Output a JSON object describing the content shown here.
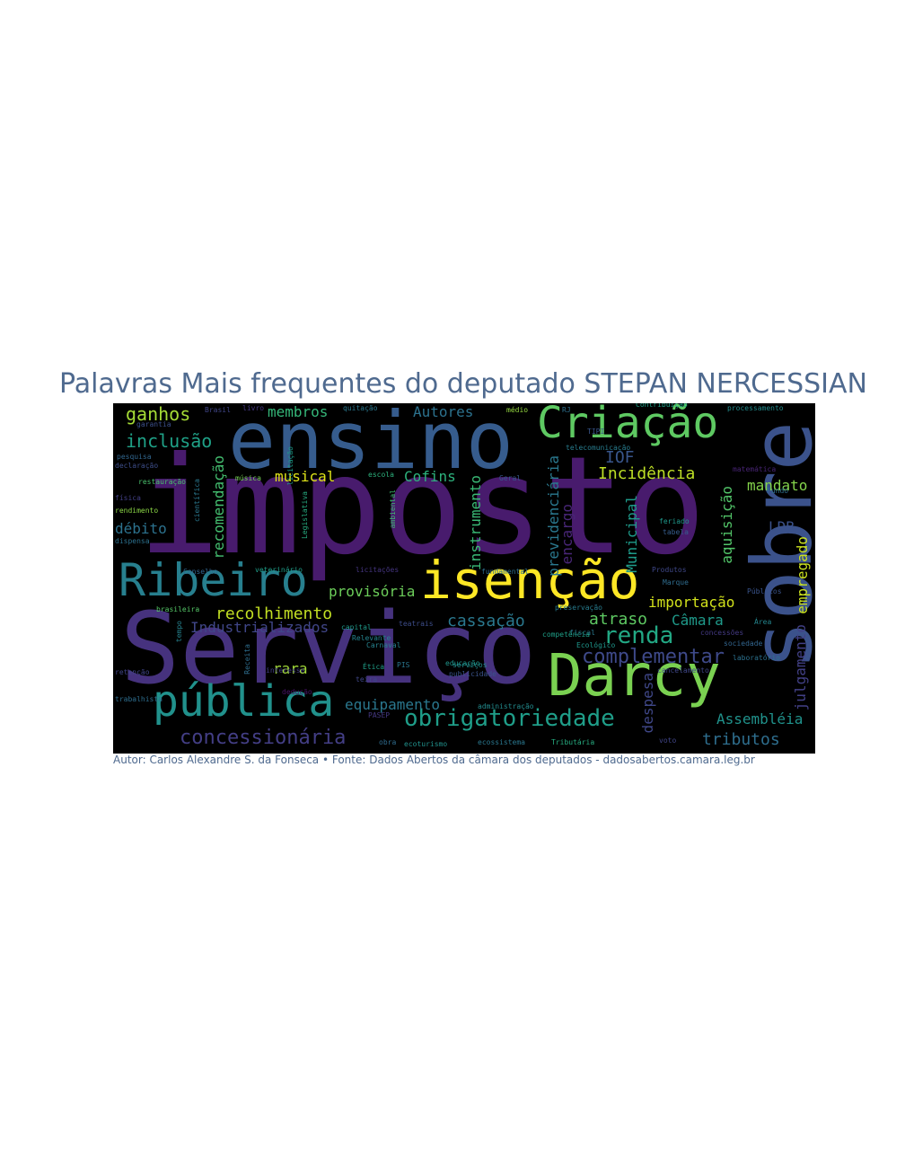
{
  "title": "Palavras Mais frequentes do deputado STEPAN NERCESSIAN",
  "caption": "Autor: Carlos Alexandre S. da Fonseca • Fonte: Dados Abertos da câmara dos deputados - dadosabertos.camara.leg.br",
  "wordcloud": {
    "background": "#000000",
    "words": [
      {
        "text": "imposto",
        "color": "#481b6d"
      },
      {
        "text": "Serviço",
        "color": "#46327e"
      },
      {
        "text": "ensino",
        "color": "#365c8d"
      },
      {
        "text": "sobre",
        "color": "#3b528b"
      },
      {
        "text": "Darcy",
        "color": "#7ad151"
      },
      {
        "text": "isenção",
        "color": "#fde725"
      },
      {
        "text": "Criação",
        "color": "#5ec962"
      },
      {
        "text": "Ribeiro",
        "color": "#277f8e"
      },
      {
        "text": "pública",
        "color": "#21918c"
      },
      {
        "text": "obrigatoriedade",
        "color": "#1f9e89"
      },
      {
        "text": "renda",
        "color": "#22a884"
      },
      {
        "text": "complementar",
        "color": "#3e4989"
      },
      {
        "text": "concessionária",
        "color": "#433e85"
      },
      {
        "text": "previdenciária",
        "color": "#2a788e"
      },
      {
        "text": "Incidência",
        "color": "#bddf26"
      },
      {
        "text": "ganhos",
        "color": "#a5db36"
      },
      {
        "text": "inclusão",
        "color": "#1fa187"
      },
      {
        "text": "membros",
        "color": "#35b779"
      },
      {
        "text": "Autores",
        "color": "#2c728e"
      },
      {
        "text": "recomendação",
        "color": "#44bf70"
      },
      {
        "text": "musical",
        "color": "#dfe318"
      },
      {
        "text": "Cofins",
        "color": "#2db27d"
      },
      {
        "text": "instrumento",
        "color": "#3aba76"
      },
      {
        "text": "IOF",
        "color": "#39568c"
      },
      {
        "text": "débito",
        "color": "#2c728e"
      },
      {
        "text": "recolhimento",
        "color": "#c2df23"
      },
      {
        "text": "provisória",
        "color": "#6ccd5a"
      },
      {
        "text": "Industrializados",
        "color": "#404688"
      },
      {
        "text": "cassação",
        "color": "#2a788e"
      },
      {
        "text": "atraso",
        "color": "#5ec962"
      },
      {
        "text": "Câmara",
        "color": "#1f9a8a"
      },
      {
        "text": "importação",
        "color": "#d2e21b"
      },
      {
        "text": "empregado",
        "color": "#cae11f"
      },
      {
        "text": "mandato",
        "color": "#84d44b"
      },
      {
        "text": "aquisição",
        "color": "#52c569"
      },
      {
        "text": "LDB",
        "color": "#3b528b"
      },
      {
        "text": "Municipal",
        "color": "#1e9b8a"
      },
      {
        "text": "encargo",
        "color": "#482677"
      },
      {
        "text": "julgamento",
        "color": "#424086"
      },
      {
        "text": "rara",
        "color": "#a2da37"
      },
      {
        "text": "equipamento",
        "color": "#2a778e"
      },
      {
        "text": "despesa",
        "color": "#3f4788"
      },
      {
        "text": "Assembléia",
        "color": "#20928c"
      },
      {
        "text": "tributos",
        "color": "#2e6e8e"
      },
      {
        "text": "Brasil",
        "color": "#404688"
      },
      {
        "text": "livro",
        "color": "#453882"
      },
      {
        "text": "quitação",
        "color": "#2a788e"
      },
      {
        "text": "médio",
        "color": "#95d840"
      },
      {
        "text": "RJ",
        "color": "#2d708e"
      },
      {
        "text": "processamento",
        "color": "#228c8d"
      },
      {
        "text": "Contribuição",
        "color": "#1fa187"
      },
      {
        "text": "garantia",
        "color": "#3c508b"
      },
      {
        "text": "pesquisa",
        "color": "#31668e"
      },
      {
        "text": "declaração",
        "color": "#3d4e8a"
      },
      {
        "text": "restauração",
        "color": "#4ac16d"
      },
      {
        "text": "física",
        "color": "#423f85"
      },
      {
        "text": "rendimento",
        "color": "#8bd646"
      },
      {
        "text": "dispensa",
        "color": "#2c718e"
      },
      {
        "text": "música",
        "color": "#75d054"
      },
      {
        "text": "científica",
        "color": "#2a788e"
      },
      {
        "text": "escola",
        "color": "#2db27d"
      },
      {
        "text": "Geral",
        "color": "#38588c"
      },
      {
        "text": "matemática",
        "color": "#482475"
      },
      {
        "text": "Fundo",
        "color": "#2e6f8e"
      },
      {
        "text": "feriado",
        "color": "#1f988b"
      },
      {
        "text": "tabela",
        "color": "#365d8d"
      },
      {
        "text": "Conselho",
        "color": "#32658e"
      },
      {
        "text": "veterinário",
        "color": "#1f9e89"
      },
      {
        "text": "licitações",
        "color": "#453581"
      },
      {
        "text": "fundamental",
        "color": "#2e6e8e"
      },
      {
        "text": "Produtos",
        "color": "#3f4889"
      },
      {
        "text": "Públicos",
        "color": "#3a548c"
      },
      {
        "text": "Marque",
        "color": "#2f6c8e"
      },
      {
        "text": "Área",
        "color": "#24868e"
      },
      {
        "text": "brasileira",
        "color": "#55c667"
      },
      {
        "text": "capital",
        "color": "#1f9a8a"
      },
      {
        "text": "Relevante",
        "color": "#25848e"
      },
      {
        "text": "teatrais",
        "color": "#3d4d8a"
      },
      {
        "text": "fiscal",
        "color": "#2a788e"
      },
      {
        "text": "concessões",
        "color": "#443a83"
      },
      {
        "text": "sociedade",
        "color": "#32658e"
      },
      {
        "text": "tempo",
        "color": "#26828e"
      },
      {
        "text": "Ecológico",
        "color": "#1f968b"
      },
      {
        "text": "competência",
        "color": "#1fa088"
      },
      {
        "text": "preservação",
        "color": "#287c8e"
      },
      {
        "text": "laboratório",
        "color": "#2c718e"
      },
      {
        "text": "retenção",
        "color": "#404588"
      },
      {
        "text": "trabalhista",
        "color": "#2e6e8e"
      },
      {
        "text": "Ética",
        "color": "#1f9f88"
      },
      {
        "text": "educação",
        "color": "#1f958b"
      },
      {
        "text": "publicidade",
        "color": "#3a538b"
      },
      {
        "text": "administração",
        "color": "#228b8d"
      },
      {
        "text": "cancelamento",
        "color": "#3f4788"
      },
      {
        "text": "interesse",
        "color": "#433e85"
      },
      {
        "text": "dedução",
        "color": "#471365"
      },
      {
        "text": "teira",
        "color": "#3f4788"
      },
      {
        "text": "PASEP",
        "color": "#453882"
      },
      {
        "text": "obra",
        "color": "#2f6c8e"
      },
      {
        "text": "ecoturismo",
        "color": "#21918c"
      },
      {
        "text": "ecossistema",
        "color": "#2a778e"
      },
      {
        "text": "Tributária",
        "color": "#27ad81"
      },
      {
        "text": "voto",
        "color": "#404588"
      },
      {
        "text": "licitação",
        "color": "#1e9c89"
      },
      {
        "text": "Legislativa",
        "color": "#27ad81"
      },
      {
        "text": "ambiental",
        "color": "#3fbc73"
      },
      {
        "text": "Receita",
        "color": "#2e6e8e"
      },
      {
        "text": "Carnaval",
        "color": "#26828e"
      },
      {
        "text": "PIS",
        "color": "#2a768e"
      },
      {
        "text": "telecomunicação",
        "color": "#287d8e"
      },
      {
        "text": "TIPI",
        "color": "#39568c"
      },
      {
        "text": "serviços",
        "color": "#228c8d"
      }
    ]
  }
}
